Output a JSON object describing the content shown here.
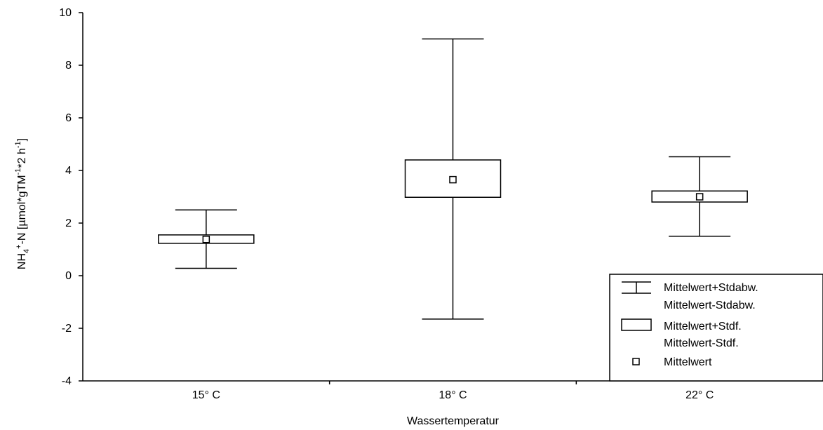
{
  "chart_data": {
    "type": "box",
    "xlabel": "Wassertemperatur",
    "ylabel": "NH4+-N [µmol*gTM-1*2 h-1]",
    "ylabel_parts": {
      "main": "NH",
      "sub": "4",
      "sup": "+",
      "rest1": "-N [µmol*gTM",
      "sup2": "-1",
      "rest2": "*2 h",
      "sup3": "-1",
      "rest3": "]"
    },
    "ylim": [
      -4,
      10
    ],
    "yticks": [
      -4,
      -2,
      0,
      2,
      4,
      6,
      8,
      10
    ],
    "categories": [
      "15° C",
      "18° C",
      "22° C"
    ],
    "series": [
      {
        "category": "15° C",
        "mean": 1.38,
        "se_low": 1.23,
        "se_high": 1.55,
        "sd_low": 0.28,
        "sd_high": 2.5
      },
      {
        "category": "18° C",
        "mean": 3.65,
        "se_low": 2.98,
        "se_high": 4.4,
        "sd_low": -1.65,
        "sd_high": 9.0
      },
      {
        "category": "22° C",
        "mean": 3.0,
        "se_low": 2.8,
        "se_high": 3.22,
        "sd_low": 1.5,
        "sd_high": 4.52
      }
    ],
    "legend": {
      "position": "bottom-right",
      "sd_label_1": "Mittelwert+Stdabw.",
      "sd_label_2": "Mittelwert-Stdabw.",
      "se_label_1": "Mittelwert+Stdf.",
      "se_label_2": "Mittelwert-Stdf.",
      "mean_label": "Mittelwert"
    }
  }
}
